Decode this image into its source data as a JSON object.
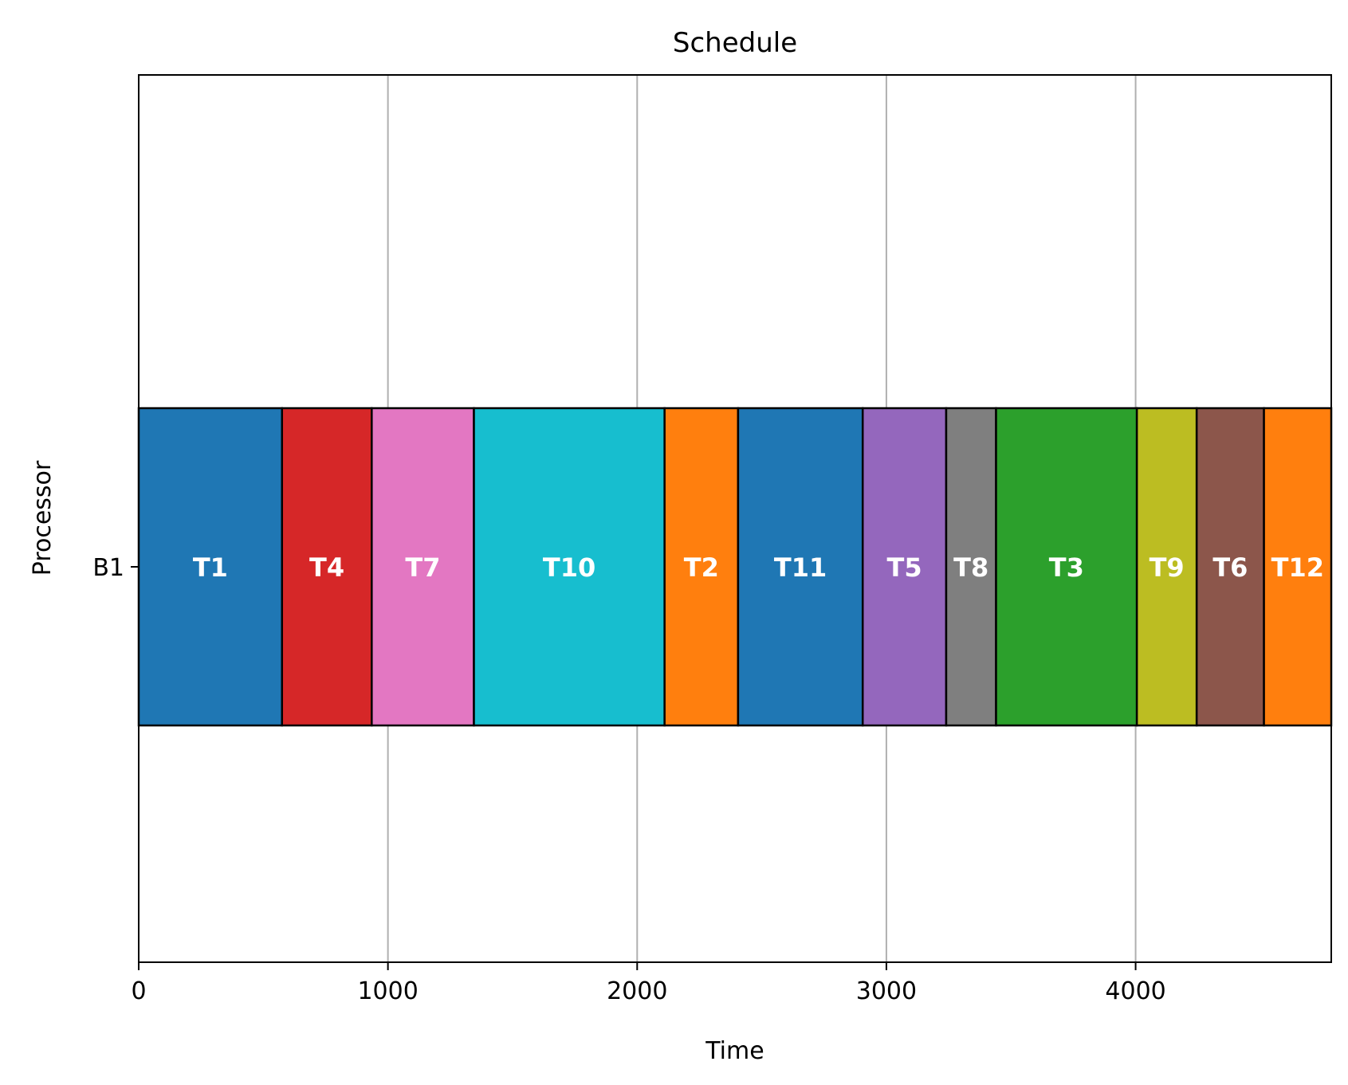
{
  "chart_data": {
    "type": "gantt",
    "title": "Schedule",
    "xlabel": "Time",
    "ylabel": "Processor",
    "xlim": [
      0,
      4785
    ],
    "xticks": [
      0,
      1000,
      2000,
      3000,
      4000
    ],
    "grid": "x",
    "rows": [
      "B1"
    ],
    "tasks": [
      {
        "label": "T1",
        "row": "B1",
        "start": 0,
        "end": 575,
        "color": "#1f77b4"
      },
      {
        "label": "T4",
        "row": "B1",
        "start": 575,
        "end": 935,
        "color": "#d62728"
      },
      {
        "label": "T7",
        "row": "B1",
        "start": 935,
        "end": 1345,
        "color": "#e377c2"
      },
      {
        "label": "T10",
        "row": "B1",
        "start": 1345,
        "end": 2110,
        "color": "#17becf"
      },
      {
        "label": "T2",
        "row": "B1",
        "start": 2110,
        "end": 2405,
        "color": "#ff7f0e"
      },
      {
        "label": "T11",
        "row": "B1",
        "start": 2405,
        "end": 2905,
        "color": "#1f77b4"
      },
      {
        "label": "T5",
        "row": "B1",
        "start": 2905,
        "end": 3240,
        "color": "#9467bd"
      },
      {
        "label": "T8",
        "row": "B1",
        "start": 3240,
        "end": 3440,
        "color": "#7f7f7f"
      },
      {
        "label": "T3",
        "row": "B1",
        "start": 3440,
        "end": 4005,
        "color": "#2ca02c"
      },
      {
        "label": "T9",
        "row": "B1",
        "start": 4005,
        "end": 4245,
        "color": "#bcbd22"
      },
      {
        "label": "T6",
        "row": "B1",
        "start": 4245,
        "end": 4515,
        "color": "#8c564b"
      },
      {
        "label": "T12",
        "row": "B1",
        "start": 4515,
        "end": 4785,
        "color": "#ff7f0e"
      }
    ]
  }
}
